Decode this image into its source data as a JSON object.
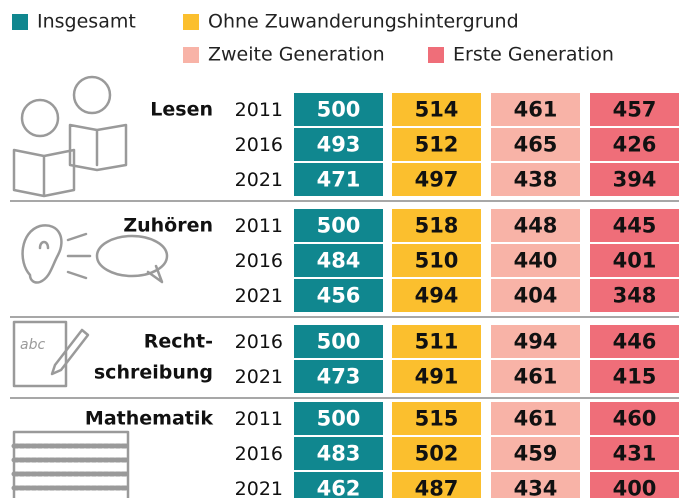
{
  "legend": [
    {
      "name": "Insgesamt",
      "color": "#10878f"
    },
    {
      "name": "Ohne Zuwanderungshintergrund",
      "color": "#fbbf2e"
    },
    {
      "name": "Zweite Generation",
      "color": "#f8b3a7"
    },
    {
      "name": "Erste Generation",
      "color": "#ef6e79"
    }
  ],
  "groups": [
    {
      "label_lines": [
        "Lesen"
      ],
      "rows": [
        {
          "year": "2011",
          "values": [
            500,
            514,
            461,
            457
          ]
        },
        {
          "year": "2016",
          "values": [
            493,
            512,
            465,
            426
          ]
        },
        {
          "year": "2021",
          "values": [
            471,
            497,
            438,
            394
          ]
        }
      ]
    },
    {
      "label_lines": [
        "Zuhören"
      ],
      "rows": [
        {
          "year": "2011",
          "values": [
            500,
            518,
            448,
            445
          ]
        },
        {
          "year": "2016",
          "values": [
            484,
            510,
            440,
            401
          ]
        },
        {
          "year": "2021",
          "values": [
            456,
            494,
            404,
            348
          ]
        }
      ]
    },
    {
      "label_lines": [
        "Recht-",
        "schreibung"
      ],
      "rows": [
        {
          "year": "2016",
          "values": [
            500,
            511,
            494,
            446
          ]
        },
        {
          "year": "2021",
          "values": [
            473,
            491,
            461,
            415
          ]
        }
      ]
    },
    {
      "label_lines": [
        "Mathematik"
      ],
      "rows": [
        {
          "year": "2011",
          "values": [
            500,
            515,
            461,
            460
          ]
        },
        {
          "year": "2016",
          "values": [
            483,
            502,
            459,
            431
          ]
        },
        {
          "year": "2021",
          "values": [
            462,
            487,
            434,
            400
          ]
        }
      ]
    }
  ]
}
